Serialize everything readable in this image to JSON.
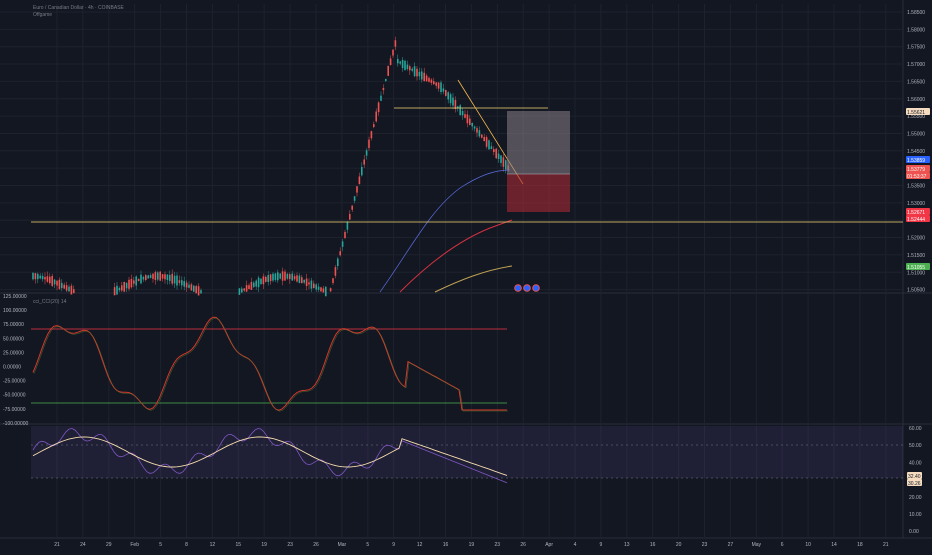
{
  "header": {
    "symbol_line": "Euro / Canadian Dollar · 4h · COINBASE",
    "sub_line": "Offgame"
  },
  "indicators": {
    "cci_label": "cci_CCI(20) 14",
    "rsi_label": ""
  },
  "price_axis": {
    "labels": [
      "1.58500",
      "1.58000",
      "1.57500",
      "1.57000",
      "1.56500",
      "1.56000",
      "1.55500",
      "1.55000",
      "1.54500",
      "1.54000",
      "1.53500",
      "1.53000",
      "1.52500",
      "1.52000",
      "1.51500",
      "1.51000",
      "1.50500"
    ]
  },
  "price_badges": [
    {
      "text": "1.55621",
      "bg": "#f5dcc0",
      "fg": "#131722"
    },
    {
      "text": "1.53859",
      "bg": "#2962ff",
      "fg": "#ffffff"
    },
    {
      "text": "1.53779",
      "bg": "#ef5350",
      "fg": "#ffffff"
    },
    {
      "text": "01:53:37",
      "bg": "#ef5350",
      "fg": "#ffffff"
    },
    {
      "text": "1.52671",
      "bg": "#f23645",
      "fg": "#ffffff"
    },
    {
      "text": "1.52444",
      "bg": "#f23645",
      "fg": "#ffffff"
    },
    {
      "text": "1.51055",
      "bg": "#4caf50",
      "fg": "#ffffff"
    }
  ],
  "cci_axis": {
    "labels": [
      "125.00000",
      "100.00000",
      "75.00000",
      "50.00000",
      "25.00000",
      "0.00000",
      "-25.00000",
      "-50.00000",
      "-75.00000",
      "-100.00000"
    ]
  },
  "rsi_axis": {
    "labels": [
      "60.00",
      "50.00",
      "40.00",
      "30.00",
      "20.00",
      "10.00",
      "0.00"
    ],
    "badges": [
      {
        "text": "32.40",
        "bg": "#f5dcc0",
        "fg": "#131722"
      },
      {
        "text": "30.26",
        "bg": "#f5dcc0",
        "fg": "#131722"
      }
    ]
  },
  "time_axis": {
    "labels": [
      "21",
      "24",
      "29",
      "Feb",
      "5",
      "8",
      "12",
      "15",
      "19",
      "23",
      "26",
      "Mar",
      "5",
      "9",
      "12",
      "16",
      "19",
      "23",
      "26",
      "Apr",
      "4",
      "9",
      "13",
      "16",
      "20",
      "23",
      "27",
      "May",
      "6",
      "10",
      "14",
      "18",
      "21",
      "25"
    ]
  },
  "markers": [
    "event-marker",
    "event-marker",
    "event-marker"
  ],
  "colors": {
    "background": "#131722",
    "grid": "#1e222d",
    "bull": "#26a69a",
    "bear": "#ef5350",
    "horizontal_level": "#f7d774",
    "trendline": "#f5b94e",
    "ma_blue": "#5b6ee1",
    "ma_red": "#d33240",
    "ma_yellow": "#bfa252",
    "cci_line": "#d4382b",
    "cci_upper_level": "#f23645",
    "cci_lower_level": "#4caf50",
    "rsi_line": "#7e57c2",
    "rsi_ma": "#f5dcaf"
  }
}
